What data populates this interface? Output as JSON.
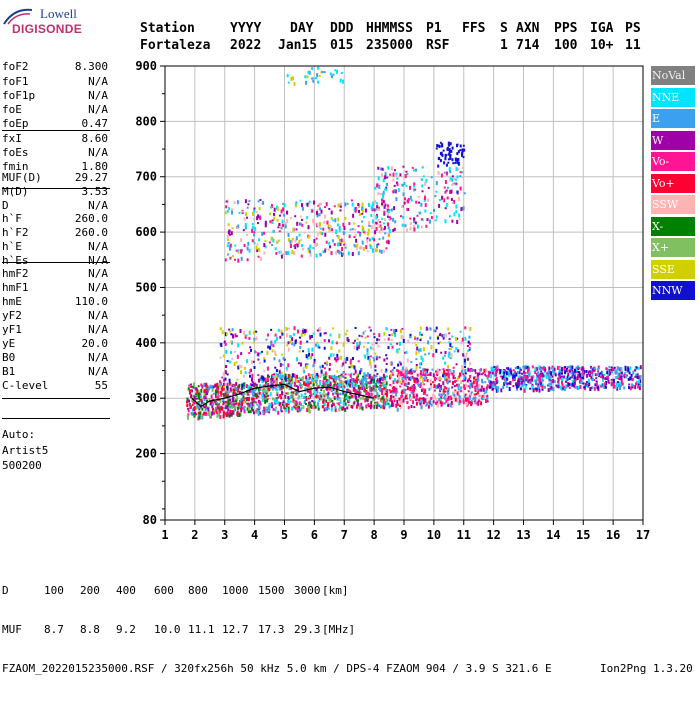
{
  "logo": {
    "line1": "Lowell",
    "line2": "DIGISONDE"
  },
  "header": {
    "labels": [
      "Station",
      "YYYY",
      "DAY",
      "DDD",
      "HHMMSS",
      "P1",
      "FFS",
      "S",
      "AXN",
      "PPS",
      "IGA",
      "PS"
    ],
    "values": [
      "Fortaleza",
      "2022",
      "Jan15",
      "015",
      "235000",
      "RSF",
      "",
      "1",
      "714",
      "100",
      "10+",
      "11"
    ]
  },
  "params": [
    {
      "k": "foF2",
      "v": "8.300"
    },
    {
      "k": "foF1",
      "v": "N/A"
    },
    {
      "k": "foF1p",
      "v": "N/A"
    },
    {
      "k": "foE",
      "v": "N/A"
    },
    {
      "k": "foEp",
      "v": "0.47"
    },
    {
      "k": "fxI",
      "v": "8.60"
    },
    {
      "k": "foEs",
      "v": "N/A"
    },
    {
      "k": "fmin",
      "v": "1.80"
    },
    {
      "k": "MUF(D)",
      "v": "29.27"
    },
    {
      "k": "M(D)",
      "v": "3.53"
    },
    {
      "k": "D",
      "v": "N/A"
    },
    {
      "k": "h`F",
      "v": "260.0"
    },
    {
      "k": "h`F2",
      "v": "260.0"
    },
    {
      "k": "h`E",
      "v": "N/A"
    },
    {
      "k": "h`Es",
      "v": "N/A"
    },
    {
      "k": "hmF2",
      "v": "N/A"
    },
    {
      "k": "hmF1",
      "v": "N/A"
    },
    {
      "k": "hmE",
      "v": "110.0"
    },
    {
      "k": "yF2",
      "v": "N/A"
    },
    {
      "k": "yF1",
      "v": "N/A"
    },
    {
      "k": "yE",
      "v": "20.0"
    },
    {
      "k": "B0",
      "v": "N/A"
    },
    {
      "k": "B1",
      "v": "N/A"
    },
    {
      "k": "C-level",
      "v": "55"
    }
  ],
  "auto": {
    "label": "Auto:",
    "name": "Artist5",
    "code": "500200"
  },
  "legend": [
    {
      "label": "NoVal",
      "color": "#808080"
    },
    {
      "label": "NNE",
      "color": "#00e5ff"
    },
    {
      "label": "E",
      "color": "#3ca0f0"
    },
    {
      "label": "W",
      "color": "#a000a8"
    },
    {
      "label": "Vo-",
      "color": "#ff1493"
    },
    {
      "label": "Vo+",
      "color": "#ff0033"
    },
    {
      "label": "SSW",
      "color": "#ffb4b4"
    },
    {
      "label": "X-",
      "color": "#008000"
    },
    {
      "label": "X+",
      "color": "#80c060"
    },
    {
      "label": "SSE",
      "color": "#d0d000"
    },
    {
      "label": "NNW",
      "color": "#1010d0"
    }
  ],
  "footer": {
    "d_label": "D",
    "d_values": [
      "100",
      "200",
      "400",
      "600",
      "800",
      "1000",
      "1500",
      "3000"
    ],
    "d_unit": "[km]",
    "muf_label": "MUF",
    "muf_values": [
      "8.7",
      "8.8",
      "9.2",
      "10.0",
      "11.1",
      "12.7",
      "17.3",
      "29.3"
    ],
    "muf_unit": "[MHz]",
    "info": "FZAOM_2022015235000.RSF / 320fx256h 50 kHz 5.0 km / DPS-4 FZAOM 904 / 3.9 S 321.6 E",
    "version": "Ion2Png 1.3.20"
  },
  "chart_data": {
    "type": "scatter",
    "xlim": [
      1,
      17
    ],
    "ylim": [
      80,
      900
    ],
    "x_ticks": [
      1,
      2,
      3,
      4,
      5,
      6,
      7,
      8,
      9,
      10,
      11,
      12,
      13,
      14,
      15,
      16,
      17
    ],
    "y_ticks": [
      80,
      200,
      300,
      400,
      500,
      600,
      700,
      800,
      900
    ],
    "grid": true,
    "trace": {
      "color": "#000000",
      "x": [
        1.9,
        2.2,
        2.5,
        3.0,
        3.5,
        4.0,
        4.5,
        5.0,
        5.5,
        6.0,
        6.5,
        7.0,
        7.5,
        8.0
      ],
      "y": [
        300,
        285,
        295,
        300,
        308,
        318,
        322,
        325,
        312,
        318,
        320,
        312,
        306,
        300
      ]
    },
    "clusters": [
      {
        "x": [
          1.7,
          4.0
        ],
        "y": [
          265,
          330
        ],
        "n": 450,
        "colors": [
          "#ff0033",
          "#ff1493",
          "#a000a8",
          "#80c060",
          "#3ca0f0",
          "#008000"
        ]
      },
      {
        "x": [
          4.0,
          8.5
        ],
        "y": [
          275,
          345
        ],
        "n": 800,
        "colors": [
          "#ff0033",
          "#ff1493",
          "#a000a8",
          "#3ca0f0",
          "#00e5ff",
          "#008000",
          "#80c060"
        ]
      },
      {
        "x": [
          8.5,
          11.8
        ],
        "y": [
          282,
          355
        ],
        "n": 500,
        "colors": [
          "#ff0033",
          "#ff1493",
          "#a000a8",
          "#3ca0f0",
          "#ffb4b4"
        ]
      },
      {
        "x": [
          2.8,
          11.2
        ],
        "y": [
          320,
          430
        ],
        "n": 550,
        "colors": [
          "#3ca0f0",
          "#00e5ff",
          "#a000a8",
          "#d0d000",
          "#ff1493",
          "#1010d0",
          "#ffb4b4"
        ]
      },
      {
        "x": [
          11.8,
          16.9
        ],
        "y": [
          315,
          360
        ],
        "n": 650,
        "colors": [
          "#a000a8",
          "#3ca0f0",
          "#00e5ff",
          "#1010d0",
          "#ff1493"
        ]
      },
      {
        "x": [
          3.0,
          8.5
        ],
        "y": [
          550,
          660
        ],
        "n": 420,
        "colors": [
          "#3ca0f0",
          "#00e5ff",
          "#a000a8",
          "#ff1493",
          "#d0d000",
          "#ffb4b4"
        ]
      },
      {
        "x": [
          8.0,
          11.0
        ],
        "y": [
          600,
          720
        ],
        "n": 220,
        "colors": [
          "#a000a8",
          "#ff1493",
          "#3ca0f0",
          "#ffb4b4",
          "#00e5ff"
        ]
      },
      {
        "x": [
          10.0,
          11.0
        ],
        "y": [
          720,
          765
        ],
        "n": 60,
        "colors": [
          "#1010d0"
        ]
      },
      {
        "x": [
          5.0,
          7.0
        ],
        "y": [
          870,
          900
        ],
        "n": 30,
        "colors": [
          "#3ca0f0",
          "#00e5ff",
          "#d0d000"
        ]
      }
    ]
  }
}
